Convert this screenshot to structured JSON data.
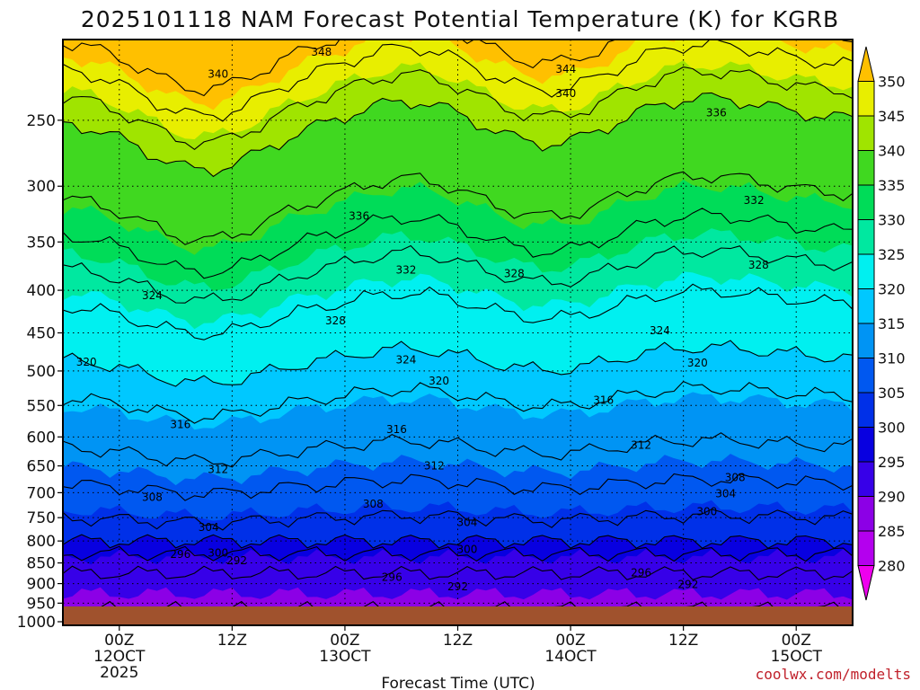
{
  "chart_data": {
    "type": "heatmap",
    "title": "2025101118 NAM Forecast Potential Temperature (K) for KGRB",
    "xlabel": "Forecast Time (UTC)",
    "ylabel": "",
    "x_ticks": [
      {
        "hour": 6,
        "lines": [
          "00Z",
          "12OCT",
          "2025"
        ]
      },
      {
        "hour": 18,
        "lines": [
          "12Z"
        ]
      },
      {
        "hour": 30,
        "lines": [
          "00Z",
          "13OCT"
        ]
      },
      {
        "hour": 42,
        "lines": [
          "12Z"
        ]
      },
      {
        "hour": 54,
        "lines": [
          "00Z",
          "14OCT"
        ]
      },
      {
        "hour": 66,
        "lines": [
          "12Z"
        ]
      },
      {
        "hour": 78,
        "lines": [
          "00Z",
          "15OCT"
        ]
      }
    ],
    "xlim": [
      0,
      84
    ],
    "y_axis": "pressure (log scale)",
    "y_ticks": [
      "250",
      "300",
      "350",
      "400",
      "450",
      "500",
      "550",
      "600",
      "650",
      "700",
      "750",
      "800",
      "850",
      "900",
      "950",
      "1000"
    ],
    "ylim": [
      200,
      1010
    ],
    "grid": true,
    "colorbar": {
      "labels": [
        "280",
        "285",
        "290",
        "295",
        "300",
        "305",
        "310",
        "315",
        "320",
        "325",
        "330",
        "335",
        "340",
        "345",
        "350"
      ],
      "levels": [
        280,
        285,
        290,
        295,
        300,
        305,
        310,
        315,
        320,
        325,
        330,
        335,
        340,
        345,
        350
      ],
      "colors": [
        "#ee00ee",
        "#b400ee",
        "#8c00e6",
        "#3700e8",
        "#0800e0",
        "#0030e8",
        "#0058f0",
        "#0094f4",
        "#00c8ff",
        "#00f0f0",
        "#00e8a0",
        "#00dc58",
        "#40d820",
        "#a0e400",
        "#e8ee00",
        "#ffc000"
      ],
      "extend": "both"
    },
    "ground_color": "#a0522d",
    "contour_interval": 4,
    "theta_profile": [
      {
        "p": 1000,
        "t": 286
      },
      {
        "p": 950,
        "t": 289
      },
      {
        "p": 900,
        "t": 291
      },
      {
        "p": 850,
        "t": 293
      },
      {
        "p": 800,
        "t": 300
      },
      {
        "p": 750,
        "t": 304
      },
      {
        "p": 700,
        "t": 307
      },
      {
        "p": 650,
        "t": 310
      },
      {
        "p": 600,
        "t": 313
      },
      {
        "p": 550,
        "t": 315
      },
      {
        "p": 500,
        "t": 319
      },
      {
        "p": 450,
        "t": 322
      },
      {
        "p": 400,
        "t": 325
      },
      {
        "p": 350,
        "t": 331
      },
      {
        "p": 300,
        "t": 337
      },
      {
        "p": 250,
        "t": 340
      },
      {
        "p": 200,
        "t": 352
      }
    ],
    "contour_labels": [
      {
        "text": "348",
        "hour": 27.5,
        "p": 207
      },
      {
        "text": "340",
        "hour": 16.5,
        "p": 220
      },
      {
        "text": "344",
        "hour": 53.5,
        "p": 217
      },
      {
        "text": "340",
        "hour": 53.5,
        "p": 232
      },
      {
        "text": "336",
        "hour": 69.5,
        "p": 245
      },
      {
        "text": "336",
        "hour": 31.5,
        "p": 326
      },
      {
        "text": "332",
        "hour": 73.5,
        "p": 312
      },
      {
        "text": "332",
        "hour": 36.5,
        "p": 378
      },
      {
        "text": "328",
        "hour": 48,
        "p": 382
      },
      {
        "text": "328",
        "hour": 74,
        "p": 373
      },
      {
        "text": "324",
        "hour": 9.5,
        "p": 406
      },
      {
        "text": "328",
        "hour": 29,
        "p": 435
      },
      {
        "text": "324",
        "hour": 63.5,
        "p": 447
      },
      {
        "text": "324",
        "hour": 36.5,
        "p": 485
      },
      {
        "text": "320",
        "hour": 2.5,
        "p": 488
      },
      {
        "text": "320",
        "hour": 40,
        "p": 514
      },
      {
        "text": "320",
        "hour": 67.5,
        "p": 489
      },
      {
        "text": "316",
        "hour": 12.5,
        "p": 580
      },
      {
        "text": "316",
        "hour": 35.5,
        "p": 588
      },
      {
        "text": "316",
        "hour": 57.5,
        "p": 542
      },
      {
        "text": "312",
        "hour": 16.5,
        "p": 656
      },
      {
        "text": "312",
        "hour": 39.5,
        "p": 650
      },
      {
        "text": "312",
        "hour": 61.5,
        "p": 614
      },
      {
        "text": "308",
        "hour": 9.5,
        "p": 709
      },
      {
        "text": "308",
        "hour": 33,
        "p": 722
      },
      {
        "text": "308",
        "hour": 71.5,
        "p": 671
      },
      {
        "text": "304",
        "hour": 15.5,
        "p": 770
      },
      {
        "text": "304",
        "hour": 43,
        "p": 760
      },
      {
        "text": "304",
        "hour": 70.5,
        "p": 702
      },
      {
        "text": "300",
        "hour": 16.5,
        "p": 827
      },
      {
        "text": "300",
        "hour": 43,
        "p": 819
      },
      {
        "text": "300",
        "hour": 68.5,
        "p": 738
      },
      {
        "text": "296",
        "hour": 12.5,
        "p": 830
      },
      {
        "text": "292",
        "hour": 18.5,
        "p": 845
      },
      {
        "text": "296",
        "hour": 35,
        "p": 884
      },
      {
        "text": "292",
        "hour": 42,
        "p": 908
      },
      {
        "text": "296",
        "hour": 61.5,
        "p": 873
      },
      {
        "text": "292",
        "hour": 66.5,
        "p": 902
      },
      {
        "text": "288",
        "hour": 12.5,
        "p": 988
      }
    ]
  },
  "credit": "coolwx.com/modelts"
}
